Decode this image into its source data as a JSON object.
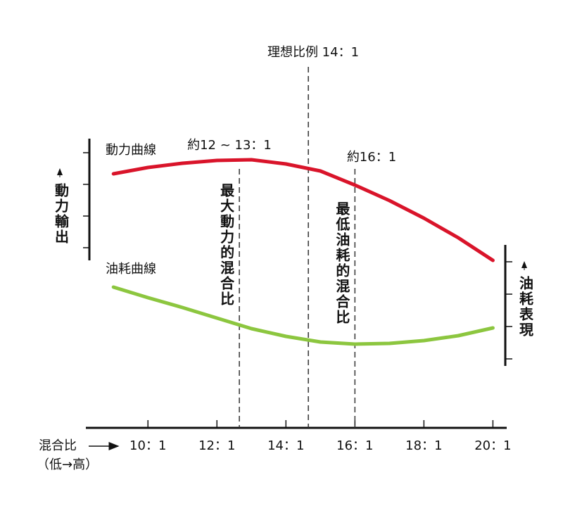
{
  "chart_data": {
    "type": "line",
    "x": [
      9,
      10,
      11,
      12,
      13,
      14,
      15,
      16,
      17,
      18,
      19,
      20
    ],
    "series": [
      {
        "name": "動力曲線",
        "color": "#d9142a",
        "values": [
          72.2,
          74,
          75.2,
          76,
          76.2,
          75,
          73,
          69,
          64.6,
          59.6,
          54,
          47.6
        ]
      },
      {
        "name": "油耗曲線",
        "color": "#8cc63f",
        "values": [
          40,
          37,
          34.2,
          31.2,
          28.2,
          26,
          24.4,
          23.8,
          24,
          24.8,
          26.2,
          28.4
        ]
      }
    ],
    "xlim": [
      8.2,
      20.4
    ],
    "xticks": [
      {
        "value": 10,
        "label": "10：1"
      },
      {
        "value": 12,
        "label": "12：1"
      },
      {
        "value": 14,
        "label": "14：1"
      },
      {
        "value": 16,
        "label": "16：1"
      },
      {
        "value": 18,
        "label": "18：1"
      },
      {
        "value": 20,
        "label": "20：1"
      }
    ],
    "ylim": [
      0,
      100
    ],
    "x_label": "混合比",
    "x_label_note": "（低→高）",
    "y_label": "動力輸出",
    "y2_label": "油耗表現",
    "reference_lines": [
      {
        "x": 12.65,
        "label": "約12 ~ 13：1",
        "note": "最大動力的混合比"
      },
      {
        "x": 14.65,
        "label": "理想比例 14：1"
      },
      {
        "x": 16,
        "label": "約16：1",
        "note": "最低油耗的混合比"
      }
    ]
  }
}
